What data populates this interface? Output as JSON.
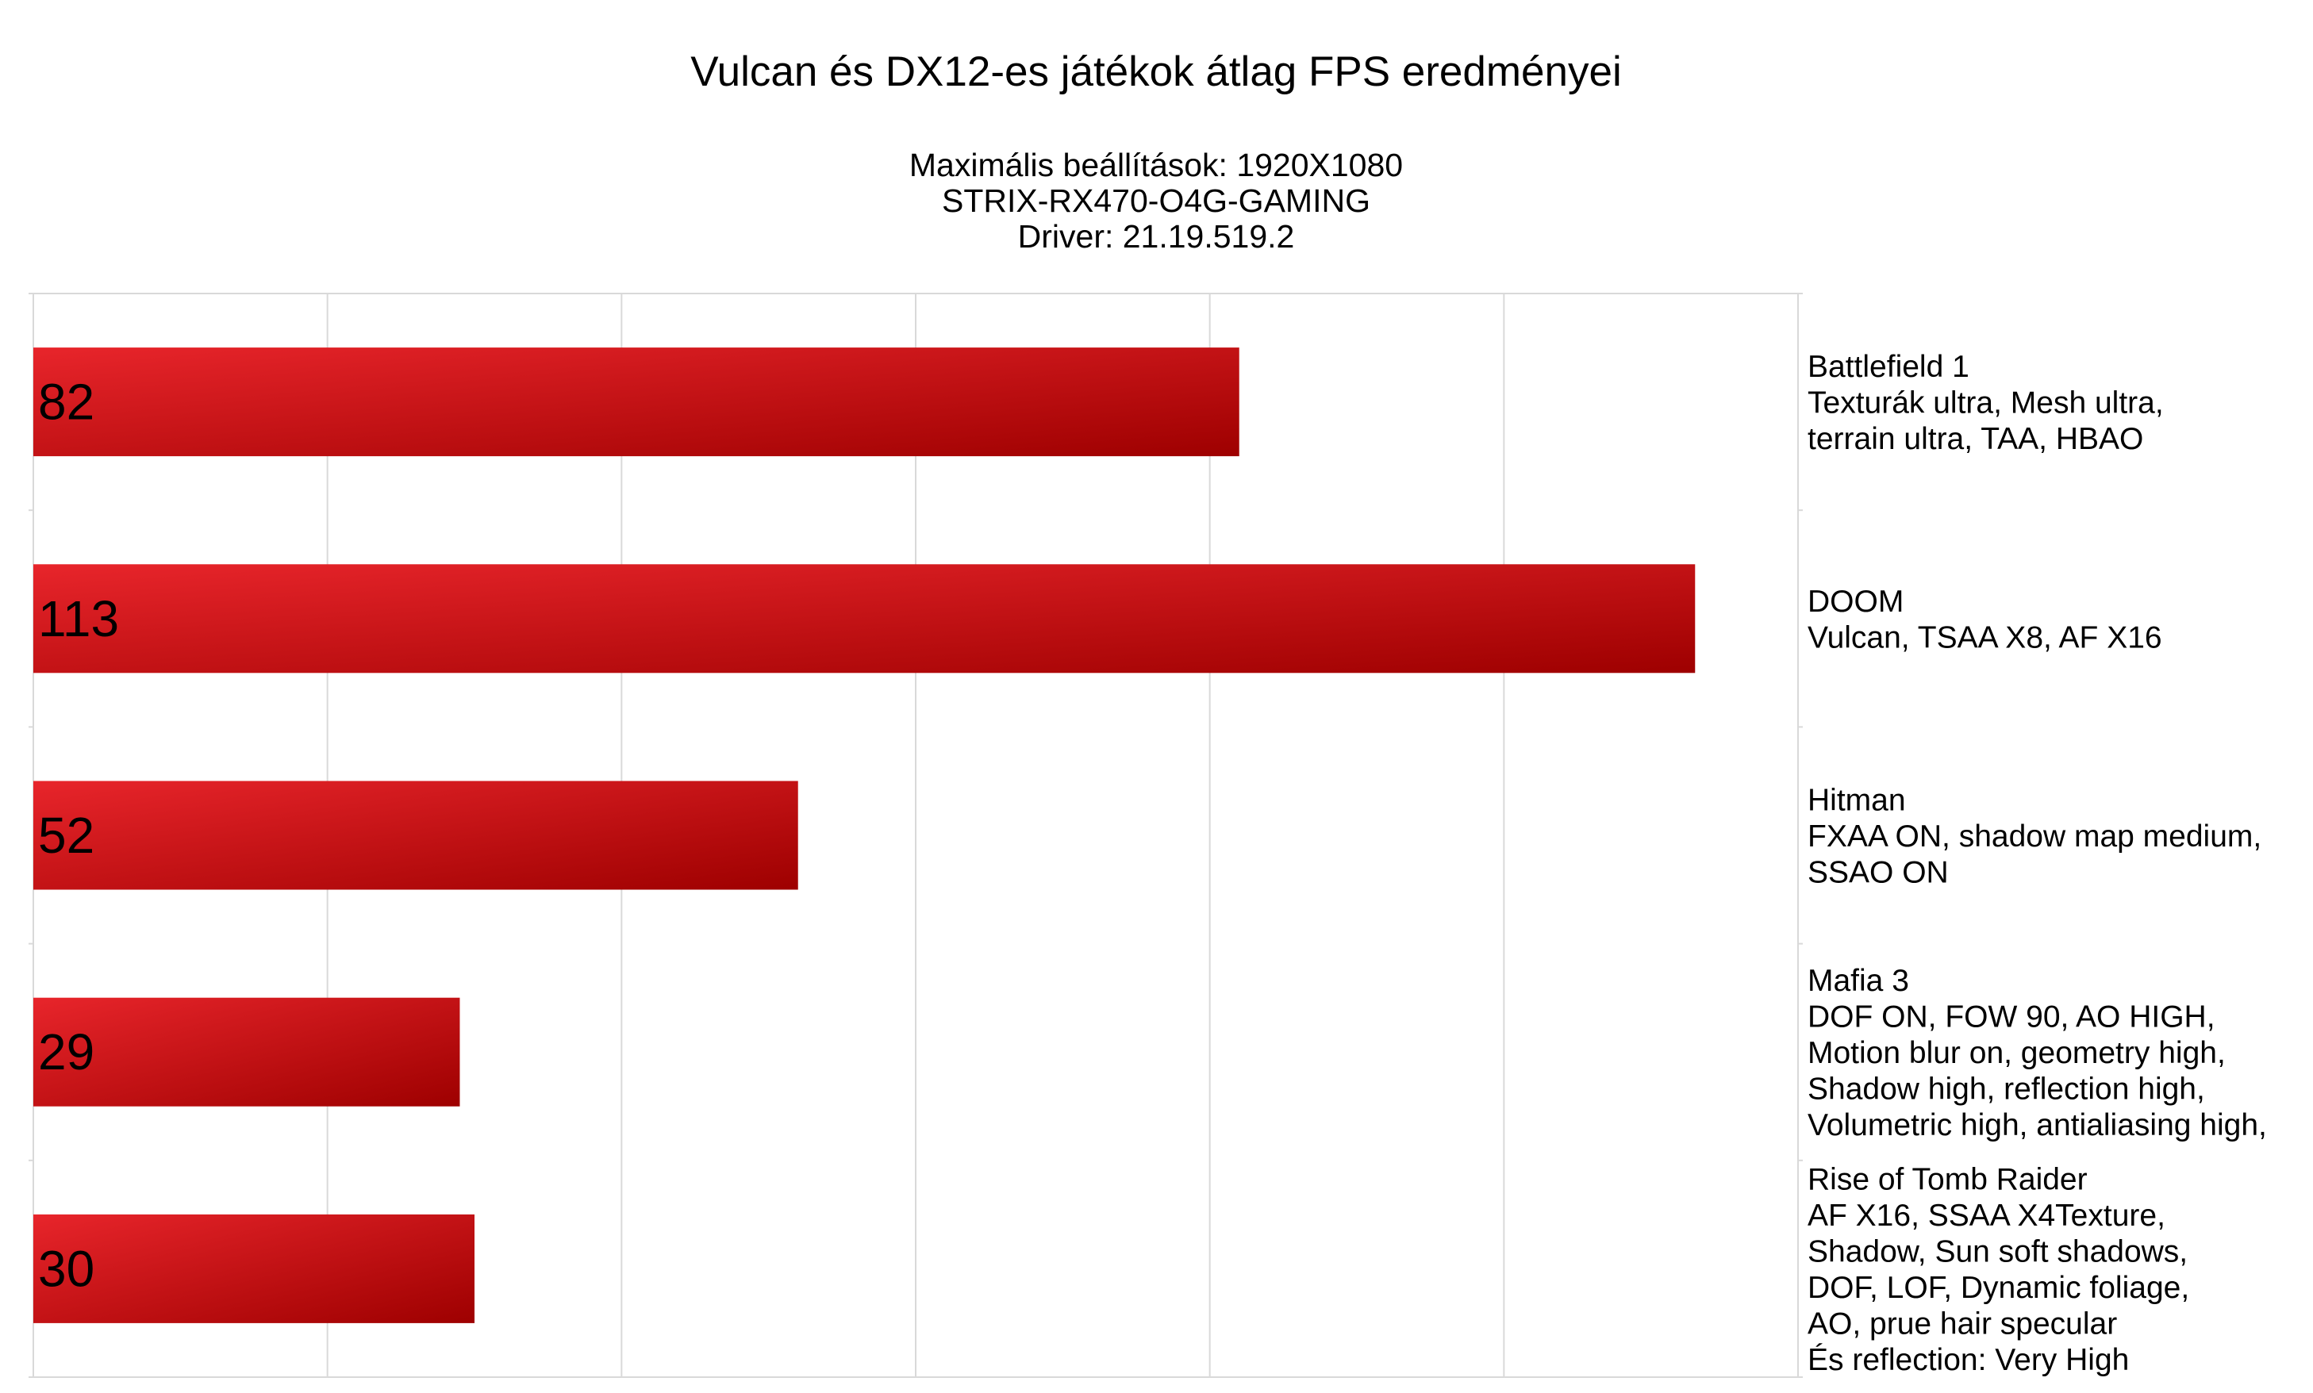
{
  "chart_data": {
    "type": "bar",
    "orientation": "horizontal",
    "title": "Vulcan és DX12-es játékok átlag FPS eredményei",
    "subtitle_lines": [
      "Maximális beállítások: 1920X1080",
      "STRIX-RX470-O4G-GAMING",
      "Driver: 21.19.519.2"
    ],
    "categories": [
      [
        "Battlefield 1",
        "Texturák ultra, Mesh ultra,",
        "terrain ultra, TAA, HBAO"
      ],
      [
        "DOOM",
        "Vulcan, TSAA X8, AF X16"
      ],
      [
        "Hitman",
        "FXAA ON, shadow map medium,",
        "SSAO ON"
      ],
      [
        "Mafia 3",
        "DOF ON, FOW 90, AO HIGH,",
        "Motion blur on, geometry high,",
        "Shadow high, reflection high,",
        "Volumetric high, antialiasing high,"
      ],
      [
        "Rise of Tomb Raider",
        "AF X16, SSAA X4Texture,",
        "Shadow, Sun soft shadows,",
        "DOF, LOF, Dynamic foliage,",
        "AO, prue hair specular",
        "És reflection: Very High"
      ]
    ],
    "values": [
      82,
      113,
      52,
      29,
      30
    ],
    "xlim": [
      0,
      120
    ],
    "gridlines": true,
    "tick_labels": "none",
    "category_labels_side": "right",
    "data_labels": "inside-left",
    "colors": {
      "bar_light": "#e8252b",
      "bar_dark": "#9e0000",
      "grid": "#d9d9d9"
    }
  }
}
